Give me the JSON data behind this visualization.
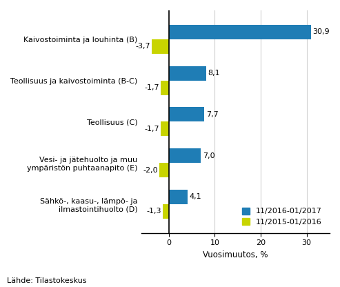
{
  "categories": [
    "Kaivostoiminta ja louhinta (B)",
    "Teollisuus ja kaivostoiminta (B-C)",
    "Teollisuus (C)",
    "Vesi- ja jätehuolto ja muu\nympäristön puhtaanapito (E)",
    "Sähkö-, kaasu-, lämpö- ja\nilmastointihuolto (D)"
  ],
  "values_2016_2017": [
    30.9,
    8.1,
    7.7,
    7.0,
    4.1
  ],
  "values_2015_2016": [
    -3.7,
    -1.7,
    -1.7,
    -2.0,
    -1.3
  ],
  "color_2016_2017": "#1f7db5",
  "color_2015_2016": "#c8d400",
  "xlabel": "Vuosimuutos, %",
  "legend_label_1": "11/2016-01/2017",
  "legend_label_2": "11/2015-01/2016",
  "source_text": "Lähde: Tilastokeskus",
  "xlim": [
    -6,
    35
  ],
  "xticks": [
    0,
    10,
    20,
    30
  ],
  "xtick_labels": [
    "0",
    "10",
    "20",
    "30"
  ],
  "bar_height": 0.35,
  "background_color": "#ffffff",
  "grid_color": "#d0d0d0"
}
